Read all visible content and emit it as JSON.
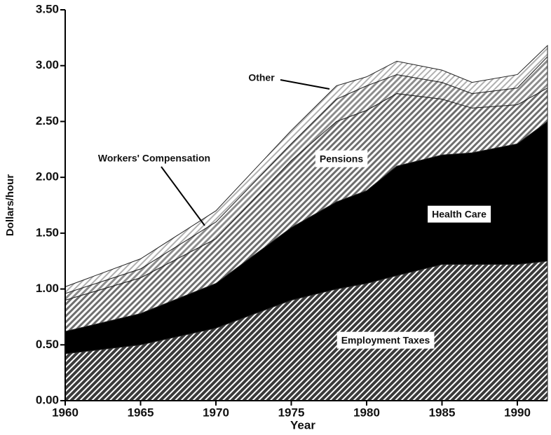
{
  "chart_data": {
    "type": "stacked-area",
    "x_label": "Year",
    "y_label": "Dollars/hour",
    "x": [
      1960,
      1965,
      1970,
      1975,
      1978,
      1980,
      1982,
      1985,
      1987,
      1990,
      1992
    ],
    "series": [
      {
        "name": "Employment Taxes",
        "color": "#3a3a3a",
        "values": [
          0.42,
          0.5,
          0.65,
          0.9,
          1.0,
          1.05,
          1.12,
          1.22,
          1.22,
          1.22,
          1.25
        ]
      },
      {
        "name": "Health Care",
        "color": "#000000",
        "values": [
          0.2,
          0.28,
          0.4,
          0.65,
          0.78,
          0.83,
          0.98,
          0.98,
          1.0,
          1.08,
          1.25
        ]
      },
      {
        "name": "Pensions",
        "color": "#6e6e6e",
        "values": [
          0.28,
          0.32,
          0.4,
          0.6,
          0.72,
          0.72,
          0.65,
          0.5,
          0.4,
          0.35,
          0.3
        ]
      },
      {
        "name": "Workers' Compensation",
        "color": "#8c8c8c",
        "values": [
          0.06,
          0.08,
          0.15,
          0.15,
          0.2,
          0.22,
          0.17,
          0.15,
          0.13,
          0.15,
          0.28
        ]
      },
      {
        "name": "Other",
        "color": "#b0b0b0",
        "values": [
          0.06,
          0.09,
          0.1,
          0.12,
          0.12,
          0.08,
          0.12,
          0.11,
          0.1,
          0.12,
          0.1
        ]
      }
    ],
    "xlim": [
      1960,
      1992
    ],
    "xticks": [
      1960,
      1965,
      1970,
      1975,
      1980,
      1985,
      1990
    ],
    "ylim": [
      0,
      3.5
    ],
    "yticks": [
      {
        "value": 0,
        "label": "0.00"
      },
      {
        "value": 0.5,
        "label": "0.50"
      },
      {
        "value": 1,
        "label": "1.00"
      },
      {
        "value": 1.5,
        "label": "1.50"
      },
      {
        "value": 2,
        "label": "2.00"
      },
      {
        "value": 2.5,
        "label": "2.50"
      },
      {
        "value": 3,
        "label": "3.00"
      },
      {
        "value": 3.5,
        "label": "3.50"
      }
    ]
  }
}
